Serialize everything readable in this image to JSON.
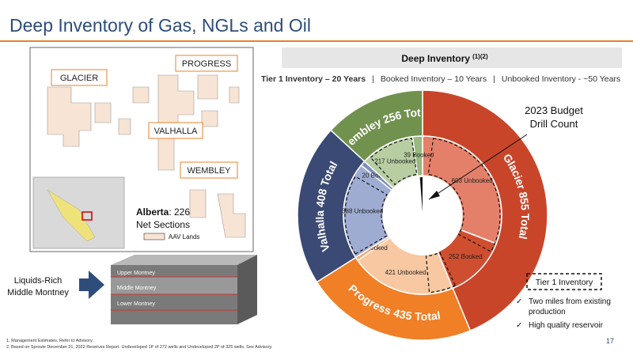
{
  "slide": {
    "title": "Deep Inventory of Gas, NGLs and Oil",
    "map_labels": [
      "GLACIER",
      "PROGRESS",
      "VALHALLA",
      "WEMBLEY"
    ],
    "alberta": {
      "label": "Alberta",
      "text": ": 226",
      "text2": "Net Sections"
    },
    "legend": "AAV Lands",
    "block_labels": [
      "Upper Montney",
      "Middle Montney",
      "Lower Montney"
    ],
    "arrow_text": [
      "Liquids-Rich",
      "Middle Montney"
    ],
    "tier_box": "Tier 1 Inventory",
    "bullets": [
      [
        "Two miles from existing",
        "production"
      ],
      [
        "High quality reservoir"
      ]
    ],
    "footnotes": [
      "1. Management Estimates. Refer to Advisory.",
      "2. Based on Sproule December 31, 2022 Reserves Report. Undeveloped 1P of 272 wells and Undeveloped 2P of 325 wells. See Advisory."
    ],
    "page_number": "17"
  },
  "chart_data": {
    "type": "donut",
    "title": "Deep Inventory",
    "title_note": "(1)(2)",
    "subtitle": [
      "Tier 1 Inventory – 20 Years",
      "Booked Inventory – 10 Years",
      "Unbooked Inventory - ~50 Years"
    ],
    "annotation": [
      "2023 Budget",
      "Drill Count"
    ],
    "rings": [
      {
        "values": [
          855,
          435,
          408,
          256
        ],
        "value_labels": [
          "Glacier 855 Total",
          "Progress 435 Total",
          "Valhalla 408 Total",
          "Wembley 256 Total"
        ],
        "colors": [
          "#c9452a",
          "#f07f26",
          "#3a4a74",
          "#71924f"
        ]
      },
      {
        "values": [
          603,
          252,
          421,
          14,
          388,
          20,
          217,
          39
        ],
        "value_labels": [
          "603 Unbooked",
          "252 Booked",
          "421 Unbooked",
          "14 Booked",
          "388 Unbooked",
          "20 Booked",
          "217 Unbooked",
          "39 Booked"
        ],
        "colors": [
          "#e4806a",
          "#cf4e30",
          "#f8c8a2",
          "#f5a66a",
          "#9eacd2",
          "#7f8fbc",
          "#b8cea2",
          "#9ab882"
        ]
      }
    ]
  }
}
